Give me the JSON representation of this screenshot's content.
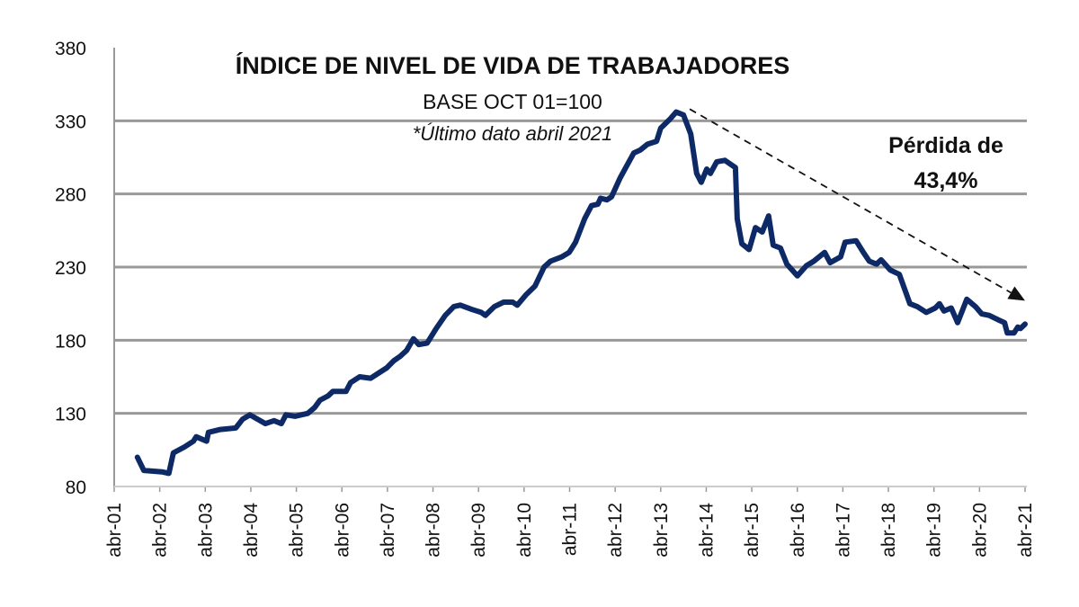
{
  "chart_data": {
    "type": "line",
    "title": "ÍNDICE DE NIVEL DE VIDA DE TRABAJADORES",
    "subtitle": "BASE OCT 01=100",
    "note": "*Último  dato abril 2021",
    "annotation": [
      "Pérdida de",
      "43,4%"
    ],
    "xlabel": "",
    "ylabel": "",
    "ylim": [
      80,
      380
    ],
    "yticks": [
      80,
      130,
      180,
      230,
      280,
      330,
      380
    ],
    "xlim": [
      2001.25,
      2021.25
    ],
    "xtick_labels": [
      "abr-01",
      "abr-02",
      "abr-03",
      "abr-04",
      "abr-05",
      "abr-06",
      "abr-07",
      "abr-08",
      "abr-09",
      "abr-10",
      "abr-11",
      "abr-12",
      "abr-13",
      "abr-14",
      "abr-15",
      "abr-16",
      "abr-17",
      "abr-18",
      "abr-19",
      "abr-20",
      "abr-21"
    ],
    "grid": true,
    "line_color": "#0d2a66",
    "trend_arrow": {
      "from": [
        2013.65,
        338
      ],
      "to": [
        2021.25,
        207
      ]
    },
    "series": [
      {
        "name": "Índice de nivel de vida",
        "x": [
          2001.76,
          2001.9,
          2002.3,
          2002.45,
          2002.55,
          2002.79,
          2002.99,
          2003.05,
          2003.28,
          2003.32,
          2003.58,
          2003.92,
          2004.07,
          2004.23,
          2004.57,
          2004.76,
          2004.92,
          2005.02,
          2005.22,
          2005.5,
          2005.65,
          2005.77,
          2005.95,
          2006.05,
          2006.34,
          2006.44,
          2006.64,
          2006.88,
          2007.03,
          2007.23,
          2007.39,
          2007.53,
          2007.67,
          2007.82,
          2007.94,
          2008.12,
          2008.32,
          2008.52,
          2008.71,
          2008.85,
          2009.11,
          2009.31,
          2009.4,
          2009.6,
          2009.8,
          2010.0,
          2010.1,
          2010.29,
          2010.49,
          2010.69,
          2010.83,
          2011.08,
          2011.24,
          2011.38,
          2011.58,
          2011.73,
          2011.87,
          2011.93,
          2012.07,
          2012.17,
          2012.36,
          2012.5,
          2012.66,
          2012.8,
          2012.96,
          2013.16,
          2013.25,
          2013.45,
          2013.59,
          2013.75,
          2013.91,
          2014.04,
          2014.14,
          2014.26,
          2014.34,
          2014.48,
          2014.66,
          2014.89,
          2014.93,
          2015.03,
          2015.19,
          2015.33,
          2015.48,
          2015.62,
          2015.72,
          2015.88,
          2016.02,
          2016.25,
          2016.45,
          2016.61,
          2016.85,
          2016.97,
          2017.2,
          2017.3,
          2017.54,
          2017.7,
          2017.83,
          2017.99,
          2018.09,
          2018.29,
          2018.49,
          2018.72,
          2018.88,
          2019.08,
          2019.28,
          2019.37,
          2019.47,
          2019.63,
          2019.77,
          2019.97,
          2020.16,
          2020.3,
          2020.46,
          2020.66,
          2020.8,
          2020.86,
          2021.01,
          2021.09,
          2021.15,
          2021.25
        ],
        "values": [
          100,
          91,
          90,
          89,
          103,
          107,
          111,
          114,
          111,
          117,
          119,
          120,
          126,
          129,
          123,
          125,
          123,
          129,
          128,
          130,
          134,
          139,
          142,
          145,
          145,
          151,
          155,
          154,
          157,
          161,
          166,
          169,
          173,
          181,
          177,
          178,
          188,
          197,
          203,
          204,
          201,
          199,
          197,
          203,
          206,
          206,
          204,
          211,
          217,
          230,
          234,
          237,
          240,
          247,
          263,
          272,
          273,
          277,
          276,
          278,
          291,
          299,
          308,
          310,
          314,
          316,
          325,
          331,
          336,
          334,
          321,
          294,
          288,
          297,
          294,
          302,
          303,
          298,
          263,
          246,
          242,
          257,
          254,
          265,
          245,
          243,
          232,
          224,
          231,
          234,
          240,
          233,
          237,
          247,
          248,
          240,
          234,
          232,
          235,
          228,
          225,
          205,
          203,
          199,
          202,
          205,
          200,
          202,
          192,
          208,
          203,
          198,
          197,
          194,
          192,
          185,
          185,
          189,
          188,
          191
        ]
      }
    ]
  }
}
